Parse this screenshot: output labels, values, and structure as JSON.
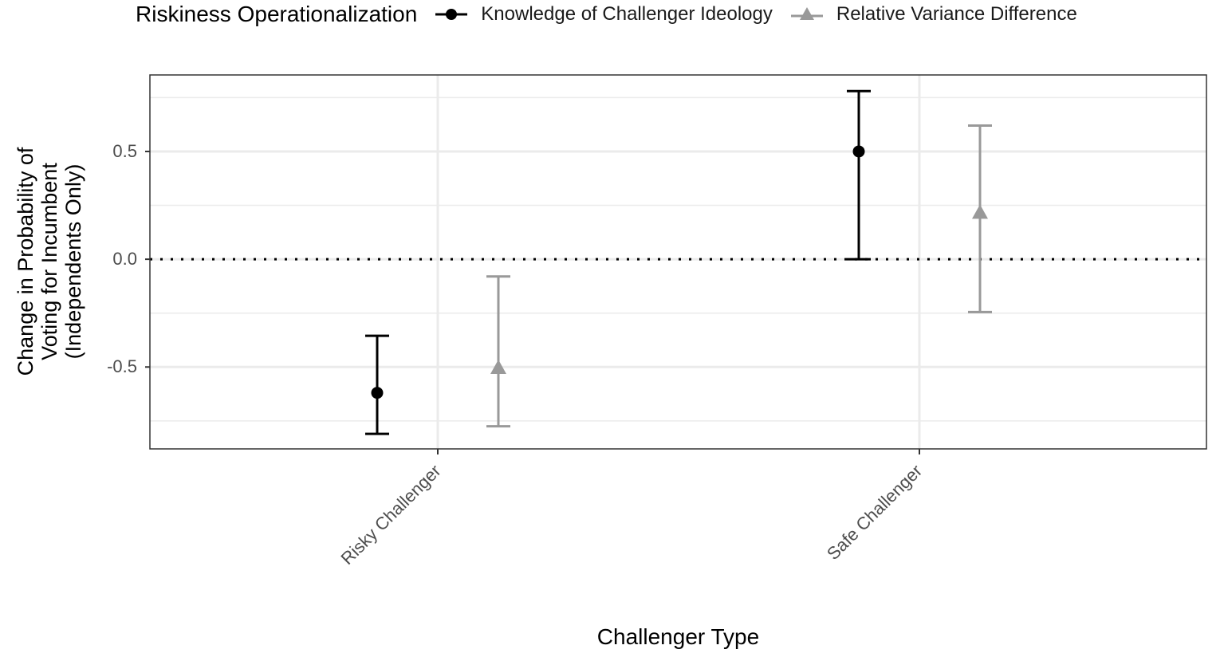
{
  "chart_data": {
    "type": "scatter",
    "subtype": "point-range (coefficient plot with error bars)",
    "title": "",
    "xlabel": "Challenger Type",
    "ylabel": "Change in Probability of Voting for Incumbent (Independents Only)",
    "ylabel_lines": [
      "Change in Probability of",
      "Voting for Incumbent",
      "(Independents Only)"
    ],
    "categories": [
      "Risky Challenger",
      "Safe Challenger"
    ],
    "yticks": [
      -0.5,
      0.0,
      0.5
    ],
    "ytick_labels": [
      "-0.5",
      "0.0",
      "0.5"
    ],
    "ylim": [
      -0.88,
      0.855
    ],
    "grid": true,
    "reference_line": {
      "y": 0.0,
      "style": "dotted",
      "color": "#000000"
    },
    "legend": {
      "title": "Riskiness Operationalization",
      "position": "top"
    },
    "series": [
      {
        "name": "Knowledge of Challenger Ideology",
        "marker": "circle",
        "color": "#000000",
        "values": [
          -0.62,
          0.5
        ],
        "lower": [
          -0.81,
          0.0
        ],
        "upper": [
          -0.355,
          0.78
        ]
      },
      {
        "name": "Relative Variance Difference",
        "marker": "triangle",
        "color": "#999999",
        "values": [
          -0.51,
          0.21
        ],
        "lower": [
          -0.775,
          -0.245
        ],
        "upper": [
          -0.08,
          0.62
        ]
      }
    ]
  },
  "legend": {
    "title": "Riskiness Operationalization",
    "items": [
      {
        "label": "Knowledge of Challenger Ideology"
      },
      {
        "label": "Relative Variance Difference"
      }
    ]
  },
  "axes": {
    "xlabel": "Challenger Type",
    "ylabel_lines": [
      "Change in Probability of",
      "Voting for Incumbent",
      "(Independents Only)"
    ],
    "xticks": [
      "Risky Challenger",
      "Safe Challenger"
    ],
    "yticks": [
      "-0.5",
      "0.0",
      "0.5"
    ]
  }
}
